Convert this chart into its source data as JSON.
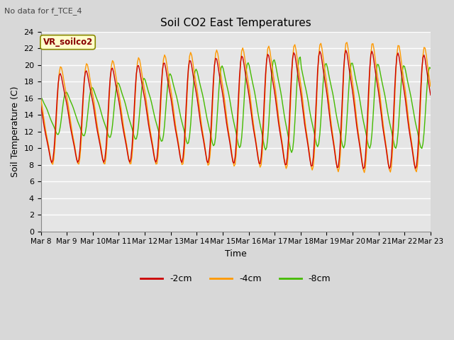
{
  "title": "Soil CO2 East Temperatures",
  "no_data_label": "No data for f_TCE_4",
  "box_label": "VR_soilco2",
  "xlabel": "Time",
  "ylabel": "Soil Temperature (C)",
  "ylim": [
    0,
    24
  ],
  "yticks": [
    0,
    2,
    4,
    6,
    8,
    10,
    12,
    14,
    16,
    18,
    20,
    22,
    24
  ],
  "bg_color": "#e5e5e5",
  "grid_color": "#ffffff",
  "line_colors": {
    "-2cm": "#cc0000",
    "-4cm": "#ff9900",
    "-8cm": "#44bb00"
  },
  "legend_labels": [
    "-2cm",
    "-4cm",
    "-8cm"
  ],
  "x_tick_labels": [
    "Mar 8",
    "Mar 9",
    "Mar 10",
    "Mar 11",
    "Mar 12",
    "Mar 13",
    "Mar 14",
    "Mar 15",
    "Mar 16",
    "Mar 17",
    "Mar 18",
    "Mar 19",
    "Mar 20",
    "Mar 21",
    "Mar 22",
    "Mar 23"
  ]
}
